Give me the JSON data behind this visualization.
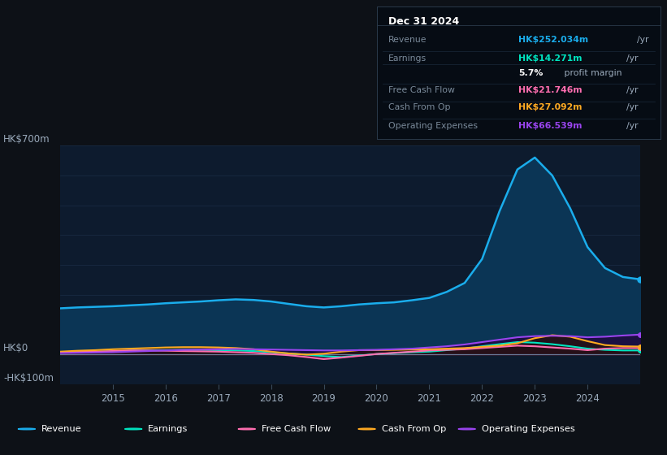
{
  "background_color": "#0d1117",
  "plot_bg_color": "#0d1b2e",
  "grid_color": "#1a2d45",
  "zero_line_color": "#6a7a9a",
  "years": [
    2014.0,
    2014.33,
    2014.67,
    2015.0,
    2015.33,
    2015.67,
    2016.0,
    2016.33,
    2016.67,
    2017.0,
    2017.33,
    2017.67,
    2018.0,
    2018.33,
    2018.67,
    2019.0,
    2019.33,
    2019.67,
    2020.0,
    2020.33,
    2020.67,
    2021.0,
    2021.33,
    2021.67,
    2022.0,
    2022.33,
    2022.67,
    2023.0,
    2023.33,
    2023.67,
    2024.0,
    2024.33,
    2024.67,
    2025.0
  ],
  "revenue": [
    155,
    158,
    160,
    162,
    165,
    168,
    172,
    175,
    178,
    182,
    185,
    183,
    178,
    170,
    162,
    158,
    162,
    168,
    172,
    175,
    182,
    190,
    210,
    240,
    320,
    480,
    620,
    660,
    600,
    490,
    360,
    290,
    260,
    252
  ],
  "earnings": [
    8,
    9,
    10,
    11,
    13,
    14,
    15,
    16,
    16,
    15,
    14,
    12,
    8,
    4,
    0,
    -5,
    -8,
    -3,
    2,
    5,
    8,
    10,
    15,
    20,
    28,
    35,
    42,
    40,
    35,
    28,
    20,
    16,
    14,
    14
  ],
  "free_cash_flow": [
    8,
    9,
    10,
    12,
    14,
    14,
    13,
    12,
    11,
    10,
    8,
    6,
    2,
    -2,
    -8,
    -15,
    -10,
    -4,
    2,
    6,
    10,
    14,
    16,
    18,
    22,
    26,
    30,
    28,
    24,
    20,
    15,
    20,
    22,
    22
  ],
  "cash_from_op": [
    10,
    13,
    15,
    18,
    20,
    22,
    24,
    25,
    25,
    24,
    22,
    18,
    10,
    4,
    0,
    3,
    10,
    15,
    15,
    16,
    17,
    18,
    20,
    22,
    26,
    30,
    38,
    55,
    65,
    60,
    45,
    32,
    28,
    27
  ],
  "operating_expenses": [
    5,
    6,
    7,
    8,
    10,
    12,
    14,
    16,
    17,
    18,
    19,
    18,
    17,
    16,
    15,
    14,
    14,
    15,
    16,
    18,
    20,
    24,
    28,
    34,
    42,
    50,
    58,
    62,
    63,
    62,
    58,
    60,
    64,
    67
  ],
  "ylim": [
    -100,
    700
  ],
  "xticks": [
    2015,
    2016,
    2017,
    2018,
    2019,
    2020,
    2021,
    2022,
    2023,
    2024
  ],
  "revenue_color": "#1aadec",
  "revenue_fill": "#0a3a5a",
  "earnings_color": "#00e5c0",
  "fcf_color": "#ff6eb0",
  "cashop_color": "#ffaa22",
  "opex_color": "#9944ee",
  "legend_items": [
    {
      "label": "Revenue",
      "color": "#1aadec"
    },
    {
      "label": "Earnings",
      "color": "#00e5c0"
    },
    {
      "label": "Free Cash Flow",
      "color": "#ff6eb0"
    },
    {
      "label": "Cash From Op",
      "color": "#ffaa22"
    },
    {
      "label": "Operating Expenses",
      "color": "#9944ee"
    }
  ],
  "info_box": {
    "date": "Dec 31 2024",
    "rows": [
      {
        "label": "Revenue",
        "value": "HK$252.034m",
        "unit": "/yr",
        "value_color": "#1aadec"
      },
      {
        "label": "Earnings",
        "value": "HK$14.271m",
        "unit": "/yr",
        "value_color": "#00e5c0"
      },
      {
        "label": "",
        "value": "5.7%",
        "unit": " profit margin",
        "value_color": "#ffffff"
      },
      {
        "label": "Free Cash Flow",
        "value": "HK$21.746m",
        "unit": "/yr",
        "value_color": "#ff6eb0"
      },
      {
        "label": "Cash From Op",
        "value": "HK$27.092m",
        "unit": "/yr",
        "value_color": "#ffaa22"
      },
      {
        "label": "Operating Expenses",
        "value": "HK$66.539m",
        "unit": "/yr",
        "value_color": "#9944ee"
      }
    ]
  }
}
